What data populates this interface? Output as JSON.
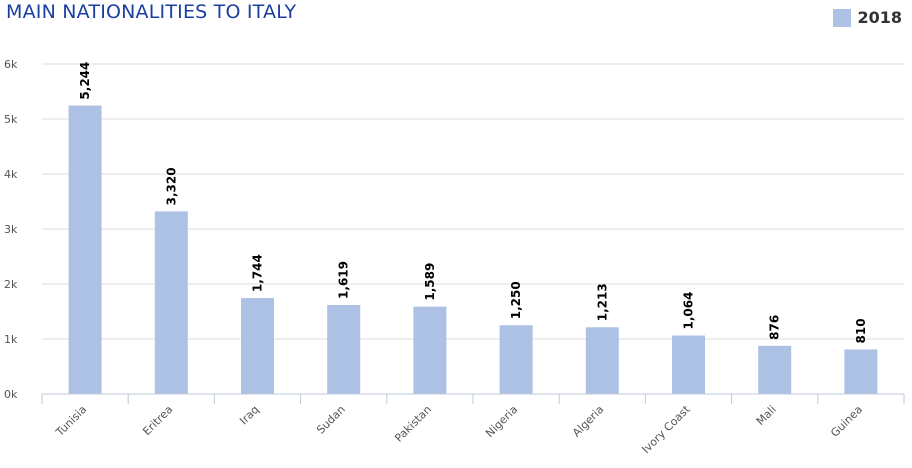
{
  "chart_data": {
    "type": "bar",
    "title": "MAIN NATIONALITIES TO ITALY",
    "categories": [
      "Tunisia",
      "Eritrea",
      "Iraq",
      "Sudan",
      "Pakistan",
      "Nigeria",
      "Algeria",
      "Ivory Coast",
      "Mali",
      "Guinea"
    ],
    "series": [
      {
        "name": "2018",
        "color": "#adc1e5",
        "values": [
          5244,
          3320,
          1744,
          1619,
          1589,
          1250,
          1213,
          1064,
          876,
          810
        ],
        "labels": [
          "5,244",
          "3,320",
          "1,744",
          "1,619",
          "1,589",
          "1,250",
          "1,213",
          "1,064",
          "876",
          "810"
        ]
      }
    ],
    "yticks": [
      {
        "value": 0,
        "label": "0k"
      },
      {
        "value": 1000,
        "label": "1k"
      },
      {
        "value": 2000,
        "label": "2k"
      },
      {
        "value": 3000,
        "label": "3k"
      },
      {
        "value": 4000,
        "label": "4k"
      },
      {
        "value": 5000,
        "label": "5k"
      },
      {
        "value": 6000,
        "label": "6k"
      }
    ],
    "ylim": [
      0,
      6000
    ],
    "xlabel": "",
    "ylabel": "",
    "grid": true,
    "legend_position": "top-right",
    "colors": {
      "title": "#1a3fa0",
      "grid": "#dddddd",
      "axis": "#c0c8d8"
    }
  }
}
